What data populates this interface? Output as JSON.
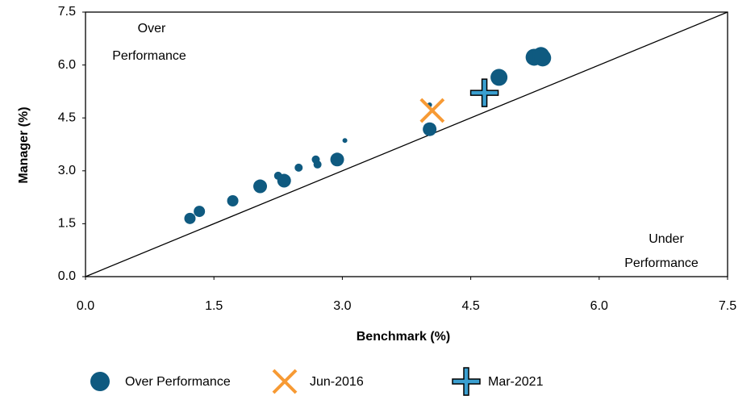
{
  "chart_data": {
    "type": "scatter",
    "xlabel": "Benchmark (%)",
    "ylabel": "Manager (%)",
    "annotations": [
      [
        "Over",
        "Performance"
      ],
      [
        "Under",
        "Performance"
      ]
    ],
    "xlim": [
      0,
      7.5
    ],
    "ylim": [
      0,
      7.5
    ],
    "xticks": [
      {
        "value": 0,
        "label": "0.0"
      },
      1.5,
      {
        "value": 3,
        "label": "3.0"
      },
      4.5,
      {
        "value": 6,
        "label": "6.0"
      },
      7.5
    ],
    "yticks": [
      {
        "value": 0,
        "label": "0.0"
      },
      1.5,
      {
        "value": 3,
        "label": "3.0"
      },
      4.5,
      {
        "value": 6,
        "label": "6.0"
      },
      7.5
    ],
    "series": [
      {
        "name": "Over Performance",
        "color": "#0f5a80",
        "marker": "circle",
        "x": [
          1.22,
          1.33,
          1.72,
          2.04,
          2.25,
          2.32,
          2.49,
          2.69,
          2.71,
          2.94,
          3.03,
          4.02,
          4.02,
          4.83,
          5.24,
          5.32,
          5.34
        ],
        "values": [
          1.65,
          1.85,
          2.15,
          2.56,
          2.86,
          2.72,
          3.09,
          3.32,
          3.18,
          3.32,
          3.86,
          4.18,
          4.87,
          5.65,
          6.22,
          6.27,
          6.2
        ],
        "sizes": [
          7,
          7,
          7,
          8.5,
          5,
          8.5,
          5,
          5,
          5,
          8.5,
          3,
          8.5,
          3,
          10.5,
          10.5,
          10.5,
          10.5
        ]
      },
      {
        "name": "Jun-2016",
        "color": "#f79a34",
        "marker": "x",
        "x": [
          4.05
        ],
        "values": [
          4.71
        ]
      },
      {
        "name": "Mar-2021",
        "color": "#3a9fd0",
        "marker": "plus",
        "x": [
          4.66
        ],
        "values": [
          5.21
        ]
      }
    ]
  }
}
